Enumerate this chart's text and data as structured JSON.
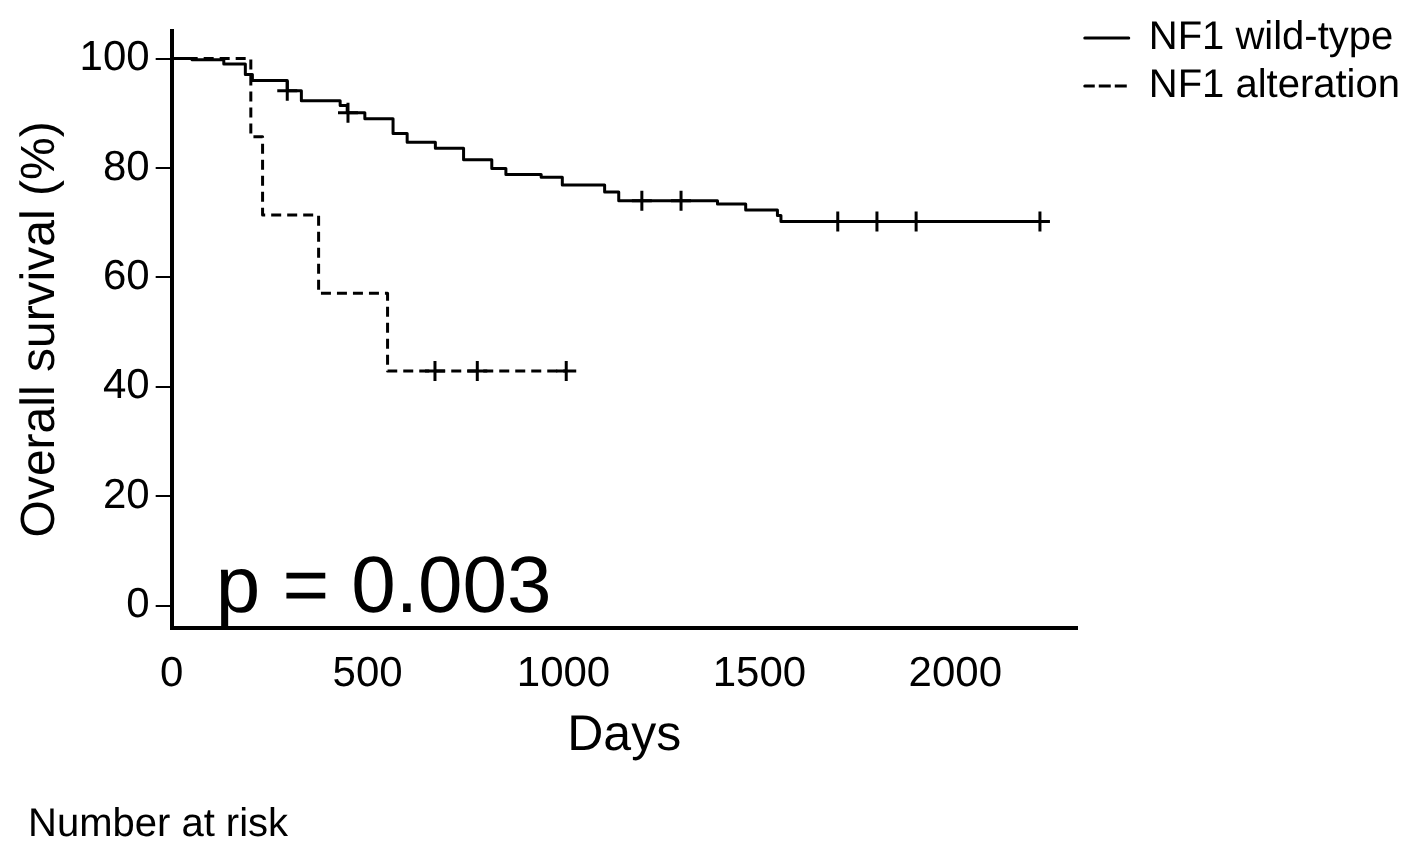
{
  "chart_data": {
    "type": "step",
    "xlabel": "Days",
    "ylabel": "Overall survival (%)",
    "xlim": [
      0,
      2310
    ],
    "xticks": [
      0,
      500,
      1000,
      1500,
      2000
    ],
    "ylim": [
      -4,
      105
    ],
    "yticks": [
      0,
      20,
      40,
      60,
      80,
      100
    ],
    "grid": false,
    "legend": "top right",
    "marker": "none",
    "series": [
      {
        "name": "NF1 wild-type",
        "color": "#000000",
        "line_style": "solid",
        "x": [
          0,
          52,
          133,
          188,
          206,
          295,
          331,
          430,
          448,
          493,
          565,
          601,
          673,
          745,
          817,
          853,
          943,
          997,
          1105,
          1141,
          1303,
          1393,
          1465,
          1546,
          1555,
          2216
        ],
        "values": [
          100,
          99.8,
          99,
          97.1,
          96,
          94.1,
          92.3,
          91.4,
          90.1,
          89,
          86.3,
          84.7,
          83.6,
          81.5,
          79.9,
          78.8,
          78.3,
          76.9,
          75.6,
          74,
          74,
          73.4,
          72.3,
          71.3,
          70.2,
          70.2
        ]
      },
      {
        "name": "NF1 alteration",
        "color": "#000000",
        "line_style": "dashed",
        "x": [
          0,
          202,
          232,
          375,
          551,
          1007
        ],
        "values": [
          100,
          85.7,
          71.4,
          57.1,
          42.9,
          42.9
        ]
      },
      {
        "type": "scatter",
        "marker": "cross",
        "color": "#000000",
        "x": [
          295,
          450,
          1200,
          1300,
          1700,
          1800,
          1900,
          2216
        ],
        "values": [
          94.1,
          90.1,
          74,
          74,
          70.2,
          70.2,
          70.2,
          70.2
        ]
      },
      {
        "type": "scatter",
        "marker": "cross",
        "color": "#000000",
        "x": [
          672,
          780,
          1007
        ],
        "values": [
          42.9,
          42.9,
          42.9
        ]
      }
    ],
    "annotations": [
      "p = 0.003",
      "Number at risk"
    ]
  }
}
